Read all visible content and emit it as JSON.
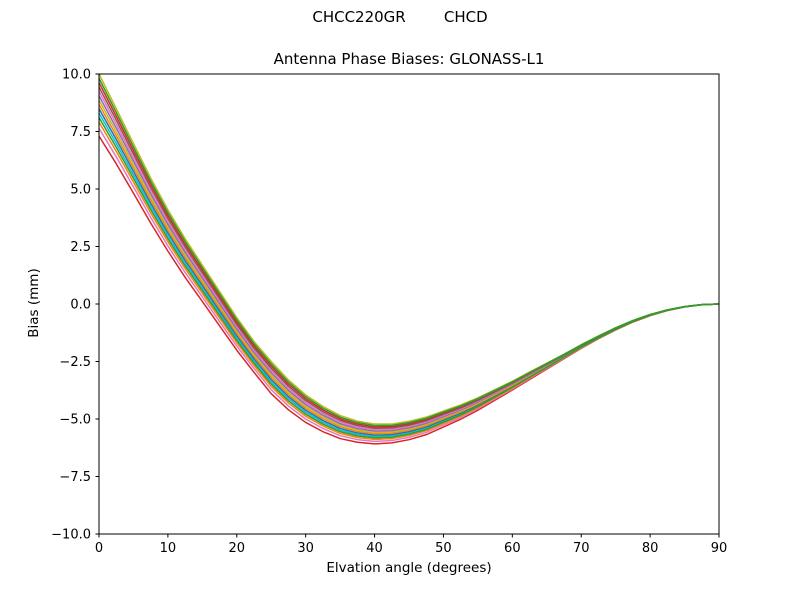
{
  "chart_data": {
    "type": "line",
    "suptitle": "CHCC220GR        CHCD",
    "title": "Antenna Phase Biases: GLONASS-L1",
    "xlabel": "Elvation angle (degrees)",
    "ylabel": "Bias (mm)",
    "xlim": [
      0,
      90
    ],
    "ylim": [
      -10.0,
      10.0
    ],
    "grid": false,
    "legend": "none",
    "background": "#ffffff",
    "axis_color": "#000000",
    "line_width": 1.5,
    "xticks": [
      {
        "value": 0,
        "label": "0"
      },
      {
        "value": 10,
        "label": "10"
      },
      {
        "value": 20,
        "label": "20"
      },
      {
        "value": 30,
        "label": "30"
      },
      {
        "value": 40,
        "label": "40"
      },
      {
        "value": 50,
        "label": "50"
      },
      {
        "value": 60,
        "label": "60"
      },
      {
        "value": 70,
        "label": "70"
      },
      {
        "value": 80,
        "label": "80"
      },
      {
        "value": 90,
        "label": "90"
      }
    ],
    "yticks": [
      {
        "value": 10.0,
        "label": "10.0"
      },
      {
        "value": 7.5,
        "label": "7.5"
      },
      {
        "value": 5.0,
        "label": "5.0"
      },
      {
        "value": 2.5,
        "label": "2.5"
      },
      {
        "value": 0.0,
        "label": "0.0"
      },
      {
        "value": -2.5,
        "label": "−2.5"
      },
      {
        "value": -5.0,
        "label": "−5.0"
      },
      {
        "value": -7.5,
        "label": "−7.5"
      },
      {
        "value": -10.0,
        "label": "−10.0"
      }
    ],
    "elevations": [
      0,
      2.5,
      5,
      7.5,
      10,
      12.5,
      15,
      17.5,
      20,
      22.5,
      25,
      27.5,
      30,
      32.5,
      35,
      37.5,
      40,
      42.5,
      45,
      47.5,
      50,
      52.5,
      55,
      57.5,
      60,
      62.5,
      65,
      67.5,
      70,
      72.5,
      75,
      77.5,
      80,
      82.5,
      85,
      87.5,
      90
    ],
    "mean_bias": [
      8.65,
      7.3,
      5.9,
      4.5,
      3.2,
      2.0,
      0.9,
      -0.2,
      -1.3,
      -2.3,
      -3.2,
      -3.95,
      -4.55,
      -5.0,
      -5.35,
      -5.55,
      -5.65,
      -5.63,
      -5.5,
      -5.3,
      -5.0,
      -4.7,
      -4.35,
      -3.95,
      -3.55,
      -3.12,
      -2.7,
      -2.28,
      -1.85,
      -1.45,
      -1.08,
      -0.75,
      -0.48,
      -0.27,
      -0.12,
      -0.03,
      0.0
    ],
    "half_spread": [
      1.35,
      1.2,
      1.08,
      0.98,
      0.9,
      0.84,
      0.79,
      0.75,
      0.71,
      0.67,
      0.7,
      0.65,
      0.6,
      0.55,
      0.5,
      0.46,
      0.43,
      0.41,
      0.4,
      0.38,
      0.35,
      0.31,
      0.27,
      0.23,
      0.19,
      0.16,
      0.13,
      0.1,
      0.08,
      0.06,
      0.05,
      0.035,
      0.025,
      0.015,
      0.008,
      0.004,
      0.002
    ],
    "curves": [
      {
        "color": "#d62728",
        "offset": -1.0
      },
      {
        "color": "#e377c2",
        "offset": -0.75
      },
      {
        "color": "#ff7f0e",
        "offset": -0.55
      },
      {
        "color": "#17becf",
        "offset": -0.26
      },
      {
        "color": "#1f77b4",
        "offset": -0.12
      },
      {
        "color": "#ff7f0e",
        "offset": 0.02
      },
      {
        "color": "#bcbd22",
        "offset": 0.16
      },
      {
        "color": "#9467bd",
        "offset": 0.3
      },
      {
        "color": "#e377c2",
        "offset": 0.44
      },
      {
        "color": "#d62728",
        "offset": 0.72
      },
      {
        "color": "#bcbd22",
        "offset": 1.0
      },
      {
        "color": "#2ca02c",
        "offset": -0.4
      },
      {
        "color": "#8c564b",
        "offset": 0.58
      },
      {
        "color": "#2ca02c",
        "offset": 0.86
      }
    ]
  }
}
